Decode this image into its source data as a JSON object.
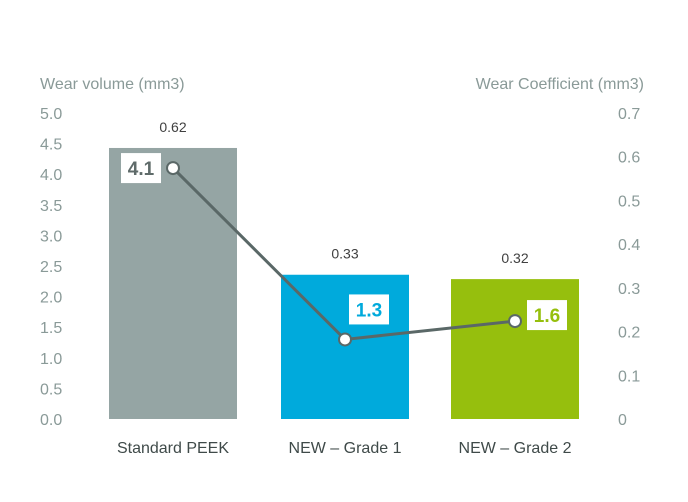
{
  "chart_data": {
    "type": "bar+line",
    "categories": [
      "Standard PEEK",
      "NEW – Grade 1",
      "NEW – Grade 2"
    ],
    "left_axis": {
      "title": "Wear volume (mm3)",
      "ylim": [
        0,
        5
      ],
      "ticks": [
        "0.0",
        "0.5",
        "1.0",
        "1.5",
        "2.0",
        "2.5",
        "3.0",
        "3.5",
        "4.0",
        "4.5",
        "5.0"
      ]
    },
    "right_axis": {
      "title": "Wear Coefficient (mm3)",
      "ylim": [
        0,
        0.7
      ],
      "ticks": [
        "0",
        "0.1",
        "0.2",
        "0.3",
        "0.4",
        "0.5",
        "0.6",
        "0.7"
      ]
    },
    "bars": {
      "axis": "right",
      "values": [
        0.62,
        0.33,
        0.32
      ],
      "labels": [
        "0.62",
        "0.33",
        "0.32"
      ],
      "colors": [
        "#95a5a4",
        "#00aadc",
        "#96bf0d"
      ]
    },
    "line": {
      "axis": "left",
      "values": [
        4.1,
        1.3,
        1.6
      ],
      "labels": [
        "4.1",
        "1.3",
        "1.6"
      ],
      "label_colors": [
        "#5f6b6a",
        "#00aadc",
        "#96bf0d"
      ],
      "color": "#5a6867"
    },
    "grid": false,
    "legend": "none"
  }
}
